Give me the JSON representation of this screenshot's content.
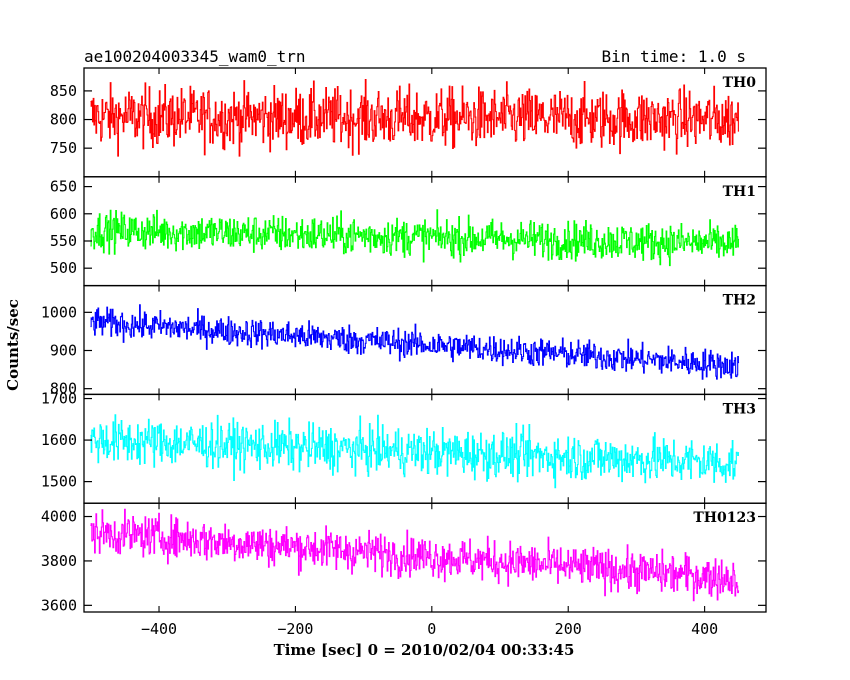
{
  "header": {
    "title": "ae100204003345_wam0_trn",
    "bin_time": "Bin time: 1.0 s"
  },
  "chart_data": {
    "type": "line",
    "title": "ae100204003345_wam0_trn",
    "xlabel": "Time [sec] 0 = 2010/02/04 00:33:45",
    "ylabel": "Counts/sec",
    "xlim": [
      -510,
      490
    ],
    "x_ticks": [
      -400,
      -200,
      0,
      200,
      400
    ],
    "x_tick_labels": [
      "−400",
      "−200",
      "0",
      "200",
      "400"
    ],
    "x_range": [
      -500,
      450
    ],
    "bin_time_sec": 1.0,
    "grid": false,
    "panels": [
      {
        "name": "TH0",
        "color": "#ff0000",
        "ylim": [
          700,
          890
        ],
        "y_ticks": [
          750,
          800,
          850
        ],
        "y_tick_labels": [
          "750",
          "800",
          "850"
        ],
        "trend": [
          [
            -500,
            805
          ],
          [
            450,
            800
          ]
        ],
        "noise": 48
      },
      {
        "name": "TH1",
        "color": "#00ff00",
        "ylim": [
          468,
          668
        ],
        "y_ticks": [
          500,
          550,
          600,
          650
        ],
        "y_tick_labels": [
          "500",
          "550",
          "600",
          "650"
        ],
        "trend": [
          [
            -500,
            570
          ],
          [
            450,
            545
          ]
        ],
        "noise": 32
      },
      {
        "name": "TH2",
        "color": "#0000ff",
        "ylim": [
          785,
          1070
        ],
        "y_ticks": [
          800,
          900,
          1000
        ],
        "y_tick_labels": [
          "800",
          "900",
          "1000"
        ],
        "trend": [
          [
            -500,
            975
          ],
          [
            450,
            860
          ]
        ],
        "noise": 35
      },
      {
        "name": "TH3",
        "color": "#00ffff",
        "ylim": [
          1448,
          1710
        ],
        "y_ticks": [
          1500,
          1600,
          1700
        ],
        "y_tick_labels": [
          "1500",
          "1600",
          "1700"
        ],
        "trend": [
          [
            -500,
            1600
          ],
          [
            450,
            1545
          ]
        ],
        "noise": 52
      },
      {
        "name": "TH0123",
        "color": "#ff00ff",
        "ylim": [
          3570,
          4060
        ],
        "y_ticks": [
          3600,
          3800,
          4000
        ],
        "y_tick_labels": [
          "3600",
          "3800",
          "4000"
        ],
        "trend": [
          [
            -500,
            3930
          ],
          [
            450,
            3720
          ]
        ],
        "noise": 85
      }
    ]
  }
}
